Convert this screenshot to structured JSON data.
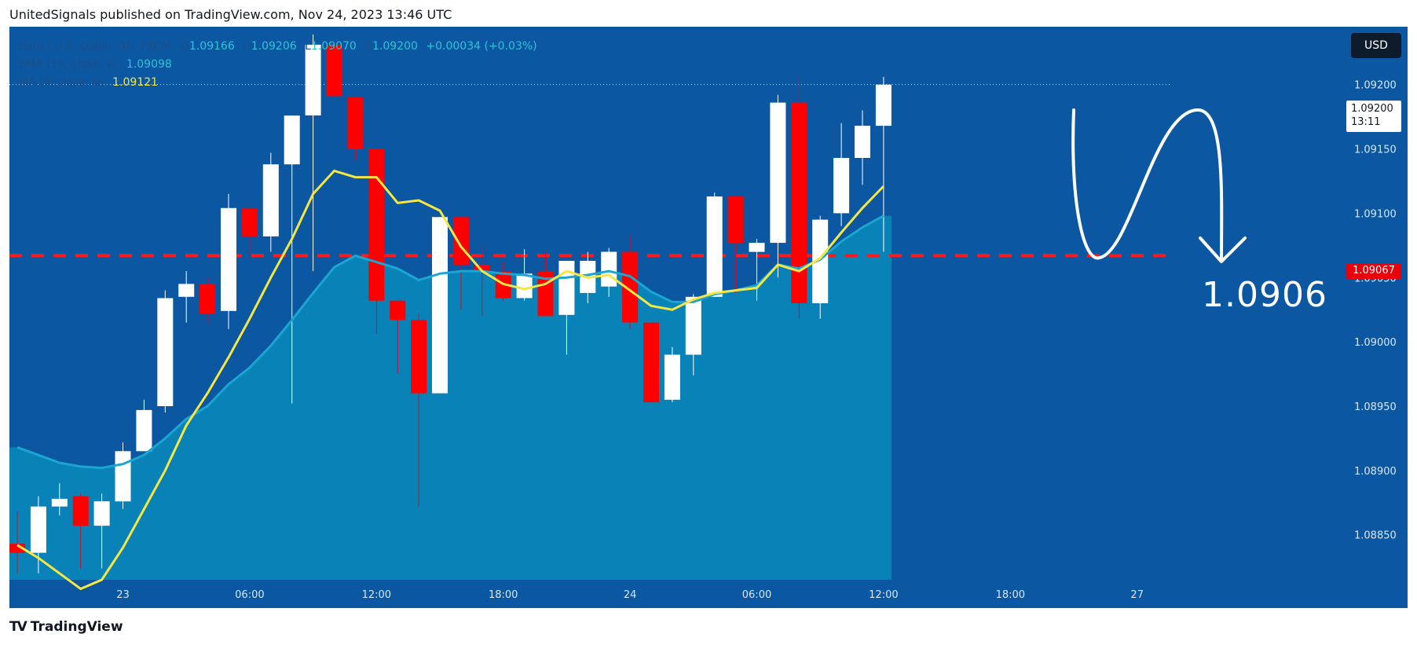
{
  "header": {
    "published_text": "UnitedSignals published on TradingView.com, Nov 24, 2023 13:46 UTC"
  },
  "legend": {
    "symbol_name": "Euro / U.S. Dollar, 1h, FXCM",
    "ohlc": {
      "o_label": "O",
      "o_value": "1.09166",
      "h_label": "H",
      "h_value": "1.09206",
      "l_label": "L",
      "l_value": "1.09070",
      "c_label": "C",
      "c_value": "1.09200",
      "change": "+0.00034 (+0.03%)"
    },
    "ema_label": "EMA (16, close, 0)",
    "ema_value": "1.09098",
    "ma_label": "MA (9, close, 0)",
    "ma_value": "1.09121"
  },
  "currency_button": "USD",
  "last_price": {
    "price": "1.09200",
    "countdown": "13:11"
  },
  "level_label": "1.09067",
  "target_annotation": "1.0906",
  "brand": {
    "name": "TradingView"
  },
  "colors": {
    "background": "#0b57a2",
    "up_candle": "#ffffff",
    "down_candle": "#ff0000",
    "ema_fill": "#0a86b8",
    "ema_line": "#1aa6d0",
    "ma_line": "#f5e642",
    "level_line": "#ff1a1a"
  },
  "chart_data": {
    "type": "candlestick",
    "symbol": "Euro / U.S. Dollar, 1h, FXCM",
    "y_axis": {
      "ticks": [
        "1.09200",
        "1.09150",
        "1.09100",
        "1.09050",
        "1.09000",
        "1.08950",
        "1.08900",
        "1.08850"
      ],
      "tick_values": [
        1.092,
        1.0915,
        1.091,
        1.0905,
        1.09,
        1.0895,
        1.089,
        1.0885
      ],
      "range": [
        1.08815,
        1.09245
      ]
    },
    "x_axis": {
      "labels": [
        "23",
        "06:00",
        "12:00",
        "18:00",
        "24",
        "06:00",
        "12:00",
        "18:00",
        "27"
      ],
      "label_bar_index": [
        5,
        11,
        17,
        23,
        29,
        35,
        41,
        47,
        53
      ]
    },
    "candles": [
      {
        "o": 1.08843,
        "h": 1.08868,
        "l": 1.0882,
        "c": 1.08836
      },
      {
        "o": 1.08836,
        "h": 1.0888,
        "l": 1.0882,
        "c": 1.08872
      },
      {
        "o": 1.08872,
        "h": 1.0889,
        "l": 1.08865,
        "c": 1.08878
      },
      {
        "o": 1.0888,
        "h": 1.08882,
        "l": 1.08824,
        "c": 1.08857
      },
      {
        "o": 1.08857,
        "h": 1.08882,
        "l": 1.08824,
        "c": 1.08876
      },
      {
        "o": 1.08876,
        "h": 1.08922,
        "l": 1.0887,
        "c": 1.08915
      },
      {
        "o": 1.08915,
        "h": 1.08955,
        "l": 1.08915,
        "c": 1.08947
      },
      {
        "o": 1.0895,
        "h": 1.0904,
        "l": 1.08945,
        "c": 1.09034
      },
      {
        "o": 1.09035,
        "h": 1.09055,
        "l": 1.09015,
        "c": 1.09045
      },
      {
        "o": 1.09045,
        "h": 1.0905,
        "l": 1.09015,
        "c": 1.09022
      },
      {
        "o": 1.09024,
        "h": 1.09115,
        "l": 1.0901,
        "c": 1.09104
      },
      {
        "o": 1.09104,
        "h": 1.09104,
        "l": 1.09068,
        "c": 1.09082
      },
      {
        "o": 1.09082,
        "h": 1.09147,
        "l": 1.0907,
        "c": 1.09138
      },
      {
        "o": 1.09138,
        "h": 1.09175,
        "l": 1.08952,
        "c": 1.09176
      },
      {
        "o": 1.09176,
        "h": 1.09239,
        "l": 1.09055,
        "c": 1.09231
      },
      {
        "o": 1.09231,
        "h": 1.09242,
        "l": 1.09142,
        "c": 1.09191
      },
      {
        "o": 1.0919,
        "h": 1.0919,
        "l": 1.09141,
        "c": 1.0915
      },
      {
        "o": 1.0915,
        "h": 1.0915,
        "l": 1.09006,
        "c": 1.09032
      },
      {
        "o": 1.09032,
        "h": 1.09032,
        "l": 1.08975,
        "c": 1.09017
      },
      {
        "o": 1.09017,
        "h": 1.09022,
        "l": 1.08872,
        "c": 1.0896
      },
      {
        "o": 1.0896,
        "h": 1.09097,
        "l": 1.0896,
        "c": 1.09097
      },
      {
        "o": 1.09097,
        "h": 1.09097,
        "l": 1.09025,
        "c": 1.0906
      },
      {
        "o": 1.0906,
        "h": 1.09075,
        "l": 1.0902,
        "c": 1.09055
      },
      {
        "o": 1.09055,
        "h": 1.09062,
        "l": 1.09032,
        "c": 1.09034
      },
      {
        "o": 1.09034,
        "h": 1.09072,
        "l": 1.09032,
        "c": 1.09053
      },
      {
        "o": 1.09055,
        "h": 1.0907,
        "l": 1.0902,
        "c": 1.0902
      },
      {
        "o": 1.09021,
        "h": 1.09062,
        "l": 1.0899,
        "c": 1.09063
      },
      {
        "o": 1.09038,
        "h": 1.0907,
        "l": 1.0903,
        "c": 1.09063
      },
      {
        "o": 1.09043,
        "h": 1.09073,
        "l": 1.09035,
        "c": 1.0907
      },
      {
        "o": 1.0907,
        "h": 1.09083,
        "l": 1.0901,
        "c": 1.09015
      },
      {
        "o": 1.09015,
        "h": 1.09015,
        "l": 1.08953,
        "c": 1.08953
      },
      {
        "o": 1.08955,
        "h": 1.08996,
        "l": 1.08953,
        "c": 1.0899
      },
      {
        "o": 1.0899,
        "h": 1.09037,
        "l": 1.08974,
        "c": 1.09035
      },
      {
        "o": 1.09035,
        "h": 1.09116,
        "l": 1.09035,
        "c": 1.09113
      },
      {
        "o": 1.09113,
        "h": 1.09113,
        "l": 1.09038,
        "c": 1.09077
      },
      {
        "o": 1.0907,
        "h": 1.0908,
        "l": 1.09032,
        "c": 1.09077
      },
      {
        "o": 1.09077,
        "h": 1.09192,
        "l": 1.0905,
        "c": 1.09186
      },
      {
        "o": 1.09186,
        "h": 1.09208,
        "l": 1.09018,
        "c": 1.0903
      },
      {
        "o": 1.0903,
        "h": 1.09098,
        "l": 1.09018,
        "c": 1.09095
      },
      {
        "o": 1.091,
        "h": 1.0917,
        "l": 1.0909,
        "c": 1.09143
      },
      {
        "o": 1.09143,
        "h": 1.0918,
        "l": 1.09122,
        "c": 1.09168
      },
      {
        "o": 1.09168,
        "h": 1.09206,
        "l": 1.0907,
        "c": 1.092
      }
    ],
    "ema": [
      1.08918,
      1.08912,
      1.08906,
      1.08903,
      1.08902,
      1.08905,
      1.08912,
      1.08925,
      1.0894,
      1.0895,
      1.08967,
      1.0898,
      1.08997,
      1.09017,
      1.09038,
      1.09058,
      1.09067,
      1.09062,
      1.09057,
      1.09048,
      1.09053,
      1.09055,
      1.09055,
      1.09053,
      1.09052,
      1.09049,
      1.0905,
      1.09052,
      1.09055,
      1.09051,
      1.09039,
      1.09031,
      1.09031,
      1.09037,
      1.0904,
      1.09044,
      1.0906,
      1.09057,
      1.09064,
      1.09078,
      1.09089,
      1.09098
    ],
    "ma": [
      1.08842,
      1.08832,
      1.0882,
      1.08808,
      1.08815,
      1.0884,
      1.0887,
      1.089,
      1.08935,
      1.0896,
      1.08988,
      1.09018,
      1.0905,
      1.0908,
      1.09115,
      1.09133,
      1.09128,
      1.09128,
      1.09108,
      1.0911,
      1.09102,
      1.09074,
      1.09055,
      1.09045,
      1.09041,
      1.09045,
      1.09055,
      1.0905,
      1.09052,
      1.0904,
      1.09028,
      1.09025,
      1.09033,
      1.09038,
      1.0904,
      1.09042,
      1.0906,
      1.09055,
      1.09065,
      1.09085,
      1.09104,
      1.09121
    ],
    "horizontal_level": 1.09067,
    "last_price": 1.092,
    "annotation": "1.0906"
  }
}
